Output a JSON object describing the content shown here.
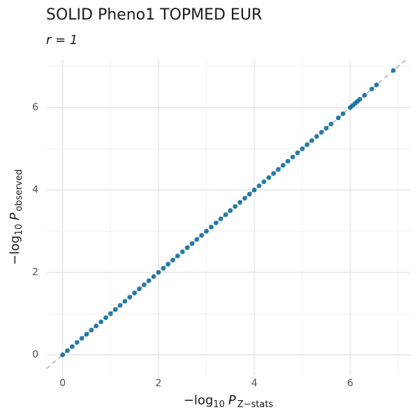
{
  "chart_data": {
    "type": "scatter",
    "title": "SOLID Pheno1 TOPMED EUR",
    "subtitle": "r = 1",
    "x_label": {
      "prefix": "−log",
      "sub": "10",
      "var": "P",
      "var_sub": "Z−stats"
    },
    "y_label": {
      "prefix": "−log",
      "sub": "10",
      "var": "P",
      "var_sub": "observed"
    },
    "series": [
      {
        "color": "#0f6ea0",
        "x": [
          0,
          0.1,
          0.2,
          0.3,
          0.4,
          0.5,
          0.6,
          0.7,
          0.8,
          0.9,
          1,
          1.1,
          1.2,
          1.3,
          1.4,
          1.5,
          1.6,
          1.7,
          1.8,
          1.9,
          2,
          2.1,
          2.2,
          2.3,
          2.4,
          2.5,
          2.6,
          2.7,
          2.8,
          2.9,
          3,
          3.1,
          3.2,
          3.3,
          3.4,
          3.5,
          3.6,
          3.7,
          3.8,
          3.9,
          4,
          4.1,
          4.2,
          4.3,
          4.4,
          4.5,
          4.6,
          4.7,
          4.8,
          4.9,
          5,
          5.1,
          5.2,
          5.3,
          5.4,
          5.5,
          5.6,
          5.75,
          5.85,
          6,
          6.05,
          6.1,
          6.15,
          6.2,
          6.3,
          6.45,
          6.55,
          6.9
        ],
        "values": [
          0,
          0.1,
          0.2,
          0.3,
          0.4,
          0.5,
          0.6,
          0.7,
          0.8,
          0.9,
          1,
          1.1,
          1.2,
          1.3,
          1.4,
          1.5,
          1.6,
          1.7,
          1.8,
          1.9,
          2,
          2.1,
          2.2,
          2.3,
          2.4,
          2.5,
          2.6,
          2.7,
          2.8,
          2.9,
          3,
          3.1,
          3.2,
          3.3,
          3.4,
          3.5,
          3.6,
          3.7,
          3.8,
          3.9,
          4,
          4.1,
          4.2,
          4.3,
          4.4,
          4.5,
          4.6,
          4.7,
          4.8,
          4.9,
          5,
          5.1,
          5.2,
          5.3,
          5.4,
          5.5,
          5.6,
          5.75,
          5.85,
          6,
          6.05,
          6.1,
          6.15,
          6.2,
          6.3,
          6.45,
          6.55,
          6.9
        ]
      }
    ],
    "xlim": [
      -0.33,
      7.26
    ],
    "ylim": [
      -0.49,
      7.17
    ],
    "xticks": [
      0,
      2,
      4,
      6
    ],
    "yticks": [
      0,
      2,
      4,
      6
    ],
    "xminor": [
      1,
      3,
      5,
      7
    ],
    "yminor": [
      1,
      3,
      5,
      7
    ],
    "grid": true
  }
}
